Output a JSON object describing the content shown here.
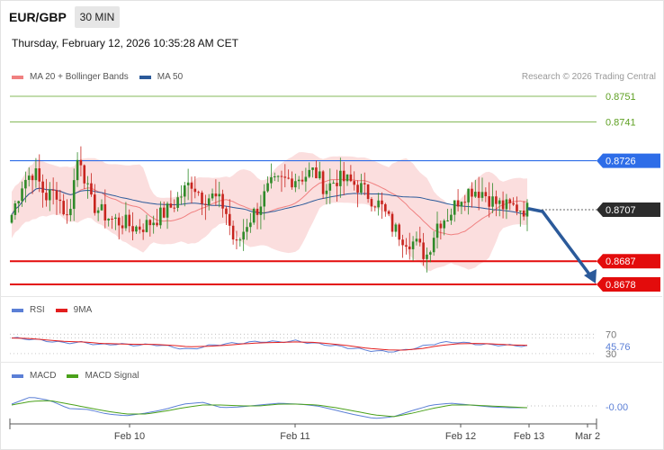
{
  "header": {
    "pair": "EUR/GBP",
    "timeframe": "30 MIN",
    "datetime": "Thursday, February 12, 2026 10:35:28 AM CET",
    "copyright": "Research © 2026 Trading Central"
  },
  "legend": {
    "main": [
      {
        "label": "MA 20 + Bollinger Bands",
        "color": "#f08080"
      },
      {
        "label": "MA 50",
        "color": "#2b5a9a"
      }
    ],
    "rsi": [
      {
        "label": "RSI",
        "color": "#5b7fd6"
      },
      {
        "label": "9MA",
        "color": "#e31e1e"
      }
    ],
    "macd": [
      {
        "label": "MACD",
        "color": "#5b7fd6"
      },
      {
        "label": "MACD Signal",
        "color": "#4aa11a"
      }
    ]
  },
  "chart_data": [
    {
      "type": "candlestick",
      "title": "EUR/GBP",
      "x_ticks": [
        "Feb 10",
        "Feb 11",
        "Feb 12",
        "Feb 13",
        "Mar 2"
      ],
      "ylim": [
        0.8673,
        0.8754
      ],
      "levels": [
        {
          "label": "0.8751",
          "value": 0.8751,
          "color": "#5ea022",
          "style": "thin"
        },
        {
          "label": "0.8741",
          "value": 0.8741,
          "color": "#5ea022",
          "style": "thin"
        },
        {
          "label": "0.8726",
          "value": 0.8726,
          "color": "#2e6de8",
          "style": "resistance"
        },
        {
          "label": "0.8707",
          "value": 0.8707,
          "color": "#2c2c2c",
          "style": "last-price"
        },
        {
          "label": "0.8687",
          "value": 0.8687,
          "color": "#e30c0c",
          "style": "support"
        },
        {
          "label": "0.8678",
          "value": 0.8678,
          "color": "#e30c0c",
          "style": "support"
        }
      ],
      "close_path": [
        0.8705,
        0.8718,
        0.8722,
        0.8712,
        0.8714,
        0.8703,
        0.873,
        0.871,
        0.8706,
        0.8703,
        0.8702,
        0.87,
        0.8701,
        0.8704,
        0.8707,
        0.8712,
        0.8718,
        0.8712,
        0.8712,
        0.8708,
        0.8692,
        0.8702,
        0.8708,
        0.8716,
        0.8718,
        0.8719,
        0.872,
        0.8722,
        0.8715,
        0.8719,
        0.8718,
        0.8716,
        0.8712,
        0.8708,
        0.87,
        0.8696,
        0.8694,
        0.8689,
        0.8702,
        0.8705,
        0.8712,
        0.8715,
        0.8714,
        0.871,
        0.8708,
        0.8708,
        0.8707
      ],
      "forecast": {
        "from": 0.8707,
        "to": 0.8678,
        "color": "#2b5a9a"
      }
    },
    {
      "type": "line",
      "title": "RSI",
      "ylim": [
        28,
        100
      ],
      "y_ticks": [
        "70",
        "30"
      ],
      "current_value": "45.76",
      "series": [
        {
          "name": "RSI",
          "values": [
            62,
            60,
            56,
            52,
            53,
            48,
            50,
            47,
            49,
            44,
            38,
            46,
            50,
            52,
            55,
            54,
            56,
            51,
            47,
            42,
            37,
            34,
            36,
            44,
            52,
            54,
            50,
            48,
            47,
            46
          ]
        },
        {
          "name": "9MA",
          "values": [
            62,
            61,
            58,
            55,
            54,
            51,
            50,
            49,
            49,
            47,
            44,
            45,
            47,
            50,
            52,
            53,
            54,
            53,
            50,
            46,
            41,
            38,
            37,
            40,
            46,
            50,
            51,
            50,
            48,
            47
          ]
        }
      ]
    },
    {
      "type": "line",
      "title": "MACD",
      "current_value": "-0.00",
      "series": [
        {
          "name": "MACD",
          "values": [
            0.2,
            1.0,
            0.6,
            -0.3,
            -0.4,
            -0.9,
            -1.1,
            -0.8,
            -0.4,
            0.2,
            0.4,
            -0.2,
            -0.1,
            0.1,
            0.3,
            0.2,
            0.0,
            -0.5,
            -1.0,
            -1.4,
            -1.2,
            -0.5,
            0.1,
            0.3,
            0.1,
            -0.1,
            -0.2,
            -0.2
          ]
        },
        {
          "name": "MACD Signal",
          "values": [
            0.1,
            0.5,
            0.6,
            0.2,
            -0.2,
            -0.6,
            -0.9,
            -0.9,
            -0.6,
            -0.2,
            0.1,
            0.1,
            0.0,
            0.0,
            0.2,
            0.2,
            0.1,
            -0.2,
            -0.6,
            -1.0,
            -1.2,
            -0.8,
            -0.3,
            0.1,
            0.1,
            0.0,
            -0.1,
            -0.2
          ]
        }
      ]
    }
  ]
}
